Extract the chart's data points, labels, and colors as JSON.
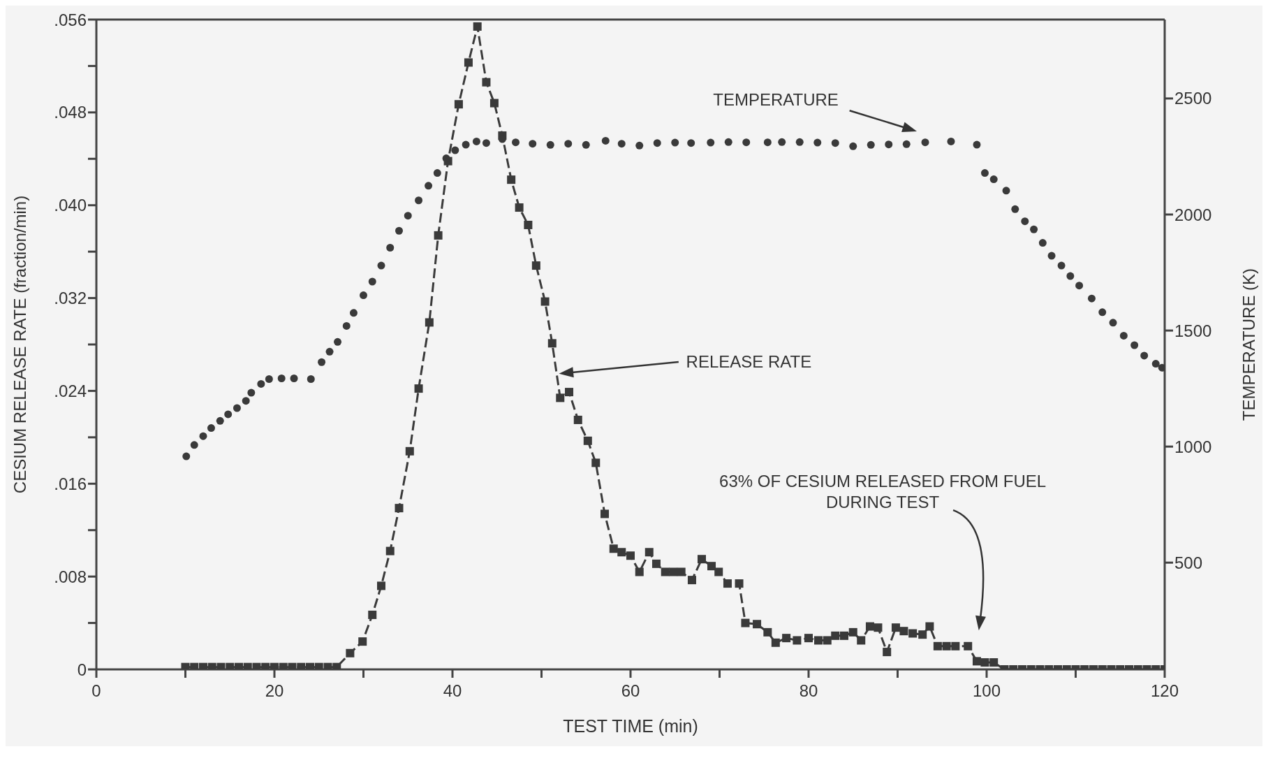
{
  "chart_data": {
    "type": "line",
    "xlabel": "TEST TIME (min)",
    "ylabel": "CESIUM RELEASE RATE (fraction/min)",
    "y2label": "TEMPERATURE (K)",
    "xlim": [
      0,
      120
    ],
    "xticks": [
      0,
      {
        "value": 10,
        "label": null
      },
      20,
      {
        "value": 30,
        "label": null
      },
      40,
      {
        "value": 50,
        "label": null
      },
      60,
      {
        "value": 70,
        "label": null
      },
      80,
      {
        "value": 90,
        "label": null
      },
      100,
      {
        "value": 110,
        "label": null
      },
      120
    ],
    "ylim": [
      0,
      0.056
    ],
    "yticks": [
      {
        "value": 0,
        "label": "0"
      },
      {
        "value": 0.004,
        "label": null
      },
      {
        "value": 0.008,
        "label": ".008"
      },
      {
        "value": 0.012,
        "label": null
      },
      {
        "value": 0.016,
        "label": ".016"
      },
      {
        "value": 0.02,
        "label": null
      },
      {
        "value": 0.024,
        "label": ".024"
      },
      {
        "value": 0.028,
        "label": null
      },
      {
        "value": 0.032,
        "label": ".032"
      },
      {
        "value": 0.036,
        "label": null
      },
      {
        "value": 0.04,
        "label": ".040"
      },
      {
        "value": 0.044,
        "label": null
      },
      {
        "value": 0.048,
        "label": ".048"
      },
      {
        "value": 0.052,
        "label": null
      },
      {
        "value": 0.056,
        "label": ".056"
      }
    ],
    "y2lim": [
      40,
      2840
    ],
    "y2ticks": [
      500,
      1000,
      1500,
      2000,
      2500
    ],
    "series": [
      {
        "marker": "square",
        "line_style": "dashed",
        "color": "#3a3a3a",
        "x": [
          10,
          11,
          12,
          13,
          14,
          15,
          16,
          17,
          18,
          19,
          20,
          21,
          22,
          23,
          24,
          25,
          26,
          27,
          28.5,
          29.9,
          31,
          32,
          33,
          34,
          35.2,
          36.2,
          37.4,
          38.4,
          39.5,
          40.7,
          41.8,
          42.8,
          43.8,
          44.7,
          45.6,
          46.6,
          47.5,
          48.5,
          49.4,
          50.4,
          51.2,
          52.1,
          53.1,
          54.1,
          55.2,
          56.1,
          57.1,
          58.1,
          59,
          60,
          61,
          62.1,
          62.9,
          63.9,
          64.8,
          65.7,
          66.9,
          68,
          69.1,
          69.9,
          70.9,
          72.2,
          72.9,
          74.2,
          75.4,
          76.3,
          77.5,
          78.7,
          80,
          81.1,
          82.1,
          83,
          84,
          85,
          85.9,
          86.9,
          87.8,
          88.8,
          89.8,
          90.7,
          91.7,
          92.8,
          93.6,
          94.5,
          95.5,
          96.5,
          97.9,
          98.9,
          99.8,
          100.8,
          102,
          103,
          104,
          105,
          106,
          107,
          108,
          109,
          110,
          111,
          112,
          113,
          114,
          115,
          116,
          117,
          118,
          119,
          120
        ],
        "values": [
          0.0002,
          0.0002,
          0.0002,
          0.0002,
          0.0002,
          0.0002,
          0.0002,
          0.0002,
          0.0002,
          0.0002,
          0.0002,
          0.0002,
          0.0002,
          0.0002,
          0.0002,
          0.0002,
          0.0002,
          0.0002,
          0.0014,
          0.0024,
          0.0047,
          0.0072,
          0.0102,
          0.0139,
          0.0188,
          0.0242,
          0.0299,
          0.0374,
          0.0438,
          0.0487,
          0.0523,
          0.0554,
          0.0506,
          0.0488,
          0.046,
          0.0422,
          0.0398,
          0.0383,
          0.0348,
          0.0317,
          0.0281,
          0.0234,
          0.0239,
          0.0215,
          0.0197,
          0.0178,
          0.0134,
          0.0104,
          0.0101,
          0.0098,
          0.0084,
          0.0101,
          0.0091,
          0.0084,
          0.0084,
          0.0084,
          0.0077,
          0.0095,
          0.0089,
          0.0084,
          0.0074,
          0.0074,
          0.004,
          0.0039,
          0.0032,
          0.0023,
          0.0027,
          0.0025,
          0.0027,
          0.0025,
          0.0025,
          0.0029,
          0.0029,
          0.0032,
          0.0025,
          0.0037,
          0.0036,
          0.0015,
          0.0036,
          0.0033,
          0.0031,
          0.003,
          0.0037,
          0.002,
          0.002,
          0.002,
          0.002,
          0.0007,
          0.0006,
          0.0006,
          0,
          0,
          0,
          0,
          0,
          0,
          0,
          0,
          0,
          0,
          0,
          0,
          0,
          0,
          0,
          0,
          0,
          0,
          0
        ]
      },
      {
        "type": "scatter",
        "axis": "y2",
        "marker": "circle",
        "color": "#3a3a3a",
        "x": [
          10.1,
          11,
          12,
          12.9,
          13.9,
          14.8,
          15.8,
          16.8,
          17.4,
          18.5,
          19.4,
          20.8,
          22.2,
          24.1,
          25.3,
          26.2,
          27.1,
          28.1,
          28.9,
          30,
          31,
          32,
          33,
          34,
          35,
          36.2,
          37.3,
          38.3,
          39.3,
          40.3,
          41.5,
          42.7,
          43.8,
          45.6,
          47.1,
          49,
          51,
          53,
          55,
          57.2,
          59,
          61,
          63,
          65,
          66.8,
          69,
          71,
          73,
          75.4,
          77,
          79,
          81,
          83,
          85,
          87,
          89,
          91,
          93.1,
          96,
          98.9,
          99.8,
          100.8,
          102.2,
          103.2,
          104.3,
          105.3,
          106.3,
          107.3,
          108.4,
          109.4,
          110.4,
          111.8,
          113,
          114.2,
          115.4,
          116.6,
          117.7,
          119,
          119.7
        ],
        "values": [
          958,
          1007,
          1045,
          1080,
          1111,
          1139,
          1166,
          1197,
          1232,
          1270,
          1291,
          1294,
          1294,
          1291,
          1364,
          1409,
          1451,
          1520,
          1576,
          1652,
          1711,
          1780,
          1857,
          1930,
          1995,
          2061,
          2124,
          2179,
          2242,
          2277,
          2301,
          2315,
          2308,
          2325,
          2311,
          2305,
          2300,
          2305,
          2300,
          2318,
          2305,
          2297,
          2308,
          2310,
          2308,
          2310,
          2312,
          2311,
          2311,
          2312,
          2312,
          2310,
          2308,
          2294,
          2300,
          2302,
          2303,
          2311,
          2315,
          2301,
          2179,
          2152,
          2103,
          2023,
          1971,
          1936,
          1878,
          1822,
          1780,
          1735,
          1694,
          1638,
          1579,
          1534,
          1478,
          1437,
          1392,
          1357,
          1340
        ]
      }
    ],
    "annotations": [
      "TEMPERATURE",
      "RELEASE RATE",
      "63% OF CESIUM RELEASED FROM FUEL\nDURING TEST"
    ]
  }
}
